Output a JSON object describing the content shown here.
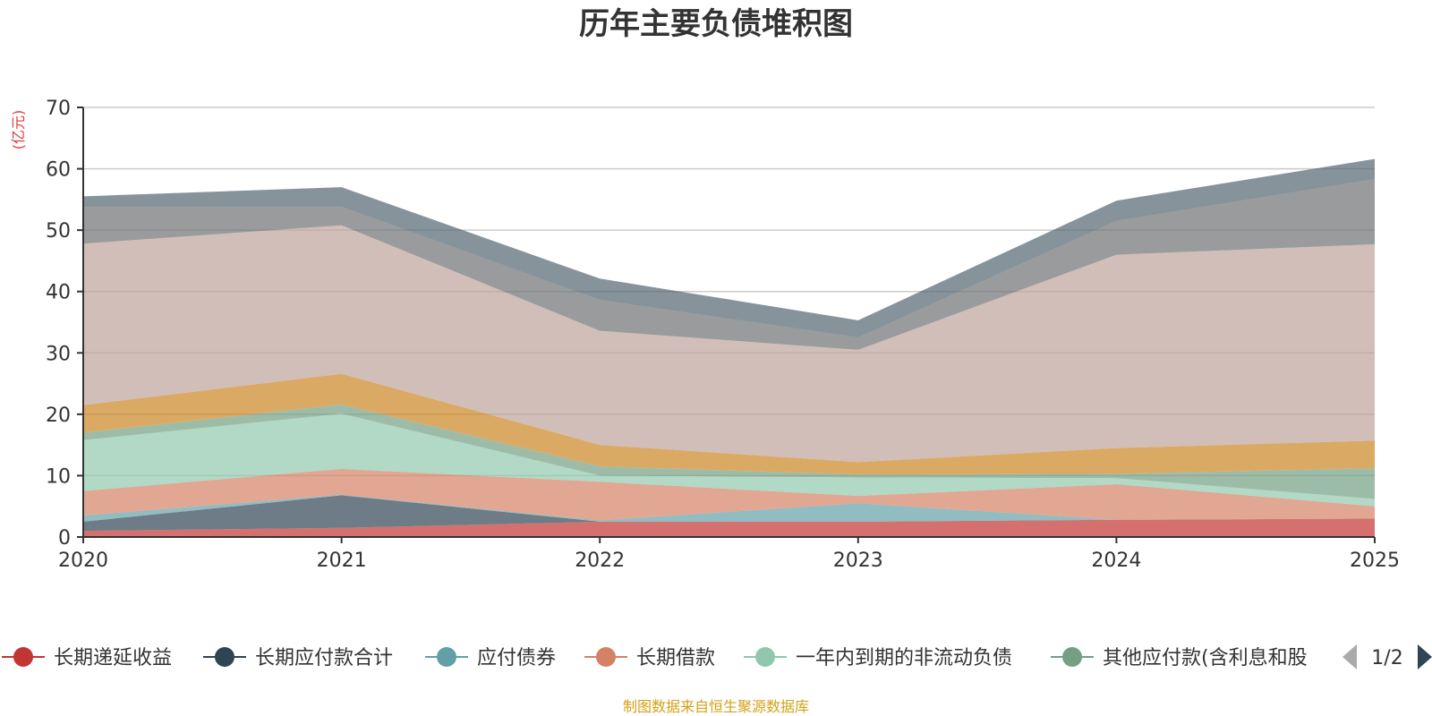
{
  "chart_data": {
    "type": "area",
    "stacked": true,
    "title": "历年主要负债堆积图",
    "ylabel": "(亿元)",
    "xlabel": "",
    "ylim": [
      0,
      70
    ],
    "yticks": [
      0,
      10,
      20,
      30,
      40,
      50,
      60,
      70
    ],
    "categories": [
      "2020",
      "2021",
      "2022",
      "2023",
      "2024",
      "2025"
    ],
    "grid": true,
    "series": [
      {
        "name": "长期递延收益",
        "color": "#c23531",
        "values": [
          1.0,
          1.5,
          2.5,
          2.5,
          2.8,
          3.0
        ],
        "legend": true
      },
      {
        "name": "长期应付款合计",
        "color": "#2f4554",
        "values": [
          1.5,
          5.3,
          0.0,
          0.0,
          0.0,
          0.0
        ],
        "legend": true
      },
      {
        "name": "应付债券",
        "color": "#61a0a8",
        "values": [
          1.0,
          0.1,
          0.2,
          3.0,
          0.0,
          0.0
        ],
        "legend": true
      },
      {
        "name": "长期借款",
        "color": "#d48265",
        "values": [
          4.0,
          4.2,
          6.3,
          1.2,
          5.8,
          2.0
        ],
        "legend": true
      },
      {
        "name": "一年内到期的非流动负债",
        "color": "#91c7ae",
        "values": [
          8.3,
          9.0,
          1.0,
          3.0,
          1.0,
          1.2
        ],
        "legend": true
      },
      {
        "name": "其他应付款(含利息和股",
        "color": "#749f83",
        "values": [
          1.2,
          1.5,
          1.5,
          0.5,
          0.7,
          5.0
        ],
        "legend": true
      },
      {
        "name": "",
        "color": "#ca8622",
        "values": [
          4.5,
          5.0,
          3.5,
          2.0,
          4.2,
          4.5
        ],
        "legend": false
      },
      {
        "name": "",
        "color": "#bda29a",
        "values": [
          26.3,
          24.2,
          18.6,
          18.3,
          31.5,
          32.0
        ],
        "legend": false
      },
      {
        "name": "",
        "color": "#6e7074",
        "values": [
          6.0,
          3.0,
          5.0,
          2.0,
          5.5,
          10.6
        ],
        "legend": false
      },
      {
        "name": "",
        "color": "#546570",
        "values": [
          1.7,
          3.2,
          3.5,
          2.8,
          3.3,
          3.3
        ],
        "legend": false
      }
    ],
    "legend_position": "bottom",
    "legend_page": "1/2"
  },
  "source_note": "制图数据来自恒生聚源数据库"
}
